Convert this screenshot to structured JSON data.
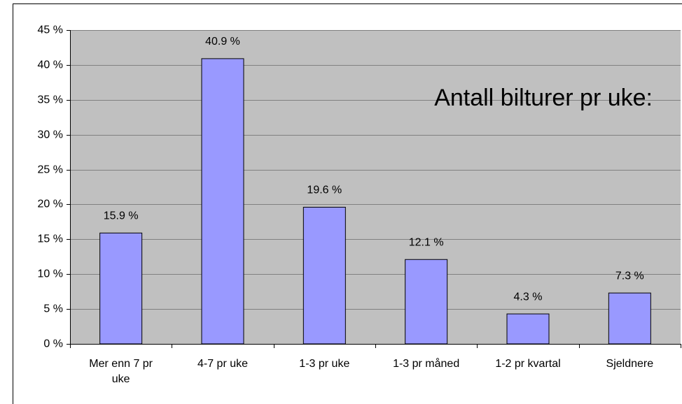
{
  "chart_data": {
    "type": "bar",
    "title": "Antall bilturer pr uke:",
    "categories": [
      "Mer enn 7 pr uke",
      "4-7 pr uke",
      "1-3 pr uke",
      "1-3 pr måned",
      "1-2 pr kvartal",
      "Sjeldnere"
    ],
    "values": [
      15.9,
      40.9,
      19.6,
      12.1,
      4.3,
      7.3
    ],
    "value_labels": [
      "15.9 %",
      "40.9 %",
      "19.6 %",
      "12.1 %",
      "4.3 %",
      "7.3 %"
    ],
    "color": "#9999ff",
    "ylim": [
      0,
      45
    ],
    "yticks": [
      {
        "value": 0,
        "label": "0 %"
      },
      {
        "value": 5,
        "label": "5 %"
      },
      {
        "value": 10,
        "label": "10 %"
      },
      {
        "value": 15,
        "label": "15 %"
      },
      {
        "value": 20,
        "label": "20 %"
      },
      {
        "value": 25,
        "label": "25 %"
      },
      {
        "value": 30,
        "label": "30 %"
      },
      {
        "value": 35,
        "label": "35 %"
      },
      {
        "value": 40,
        "label": "40 %"
      },
      {
        "value": 45,
        "label": "45 %"
      }
    ],
    "grid": true
  }
}
